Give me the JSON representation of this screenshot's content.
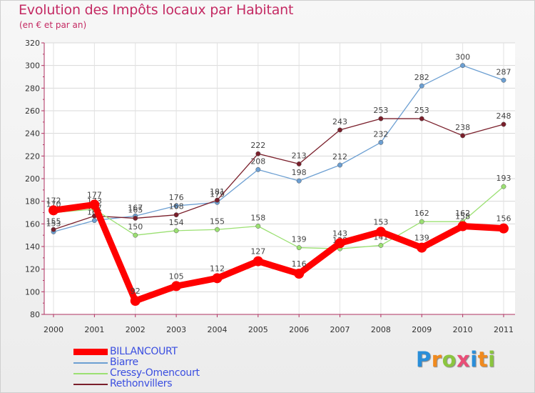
{
  "header": {
    "title": "Evolution des Impôts locaux par Habitant",
    "subtitle": "(en € et par an)"
  },
  "logo": {
    "letters": [
      "P",
      "r",
      "o",
      "x",
      "i",
      "t",
      "i"
    ],
    "colors": [
      "#2a8ed9",
      "#f08a1e",
      "#8bc53f",
      "#e94e77",
      "#2a8ed9",
      "#f08a1e",
      "#8bc53f"
    ]
  },
  "chart_data": {
    "type": "line",
    "title": "Evolution des Impôts locaux par Habitant",
    "subtitle": "(en € et par an)",
    "xlabel": "",
    "ylabel": "",
    "x": [
      "2000",
      "2001",
      "2002",
      "2003",
      "2004",
      "2005",
      "2006",
      "2007",
      "2008",
      "2009",
      "2010",
      "2011"
    ],
    "ylim": [
      80,
      320
    ],
    "yticks": [
      "80",
      "100",
      "120",
      "140",
      "160",
      "180",
      "200",
      "220",
      "240",
      "260",
      "280",
      "300",
      "320"
    ],
    "grid": true,
    "legend_position": "bottom-left",
    "series": [
      {
        "name": "Biarre",
        "color": "#6c9fd2",
        "values": [
          153,
          163,
          167,
          176,
          179,
          208,
          198,
          212,
          232,
          282,
          300,
          287
        ],
        "labels": [
          "153",
          "163",
          "167",
          "176",
          "179",
          "208",
          "198",
          "212",
          "232",
          "282",
          "300",
          "287"
        ]
      },
      {
        "name": "Rethonvillers",
        "color": "#7a1f2b",
        "values": [
          155,
          167,
          165,
          168,
          181,
          222,
          213,
          243,
          253,
          253,
          238,
          248
        ],
        "labels": [
          "155",
          "167",
          "165",
          "168",
          "181",
          "222",
          "213",
          "243",
          "253",
          "253",
          "238",
          "248"
        ]
      },
      {
        "name": "Cressy-Omencourt",
        "color": "#9be072",
        "values": [
          170,
          173,
          150,
          154,
          155,
          158,
          139,
          138,
          141,
          162,
          162,
          193
        ],
        "labels": [
          "170",
          "173",
          "150",
          "154",
          "155",
          "158",
          "139",
          "138",
          "141",
          "162",
          "162",
          "193"
        ]
      },
      {
        "name": "BILLANCOURT",
        "color": "#ff0000",
        "values": [
          172,
          177,
          92,
          105,
          112,
          127,
          116,
          143,
          153,
          139,
          158,
          156
        ],
        "labels": [
          "172",
          "177",
          "92",
          "105",
          "112",
          "127",
          "116",
          "143",
          "153",
          "139",
          "158",
          "156"
        ]
      }
    ],
    "legend": [
      {
        "name": "BILLANCOURT",
        "color": "#ff0000",
        "thick": true
      },
      {
        "name": "Biarre",
        "color": "#6c9fd2",
        "thick": false
      },
      {
        "name": "Cressy-Omencourt",
        "color": "#9be072",
        "thick": false
      },
      {
        "name": "Rethonvillers",
        "color": "#7a1f2b",
        "thick": false
      }
    ]
  }
}
